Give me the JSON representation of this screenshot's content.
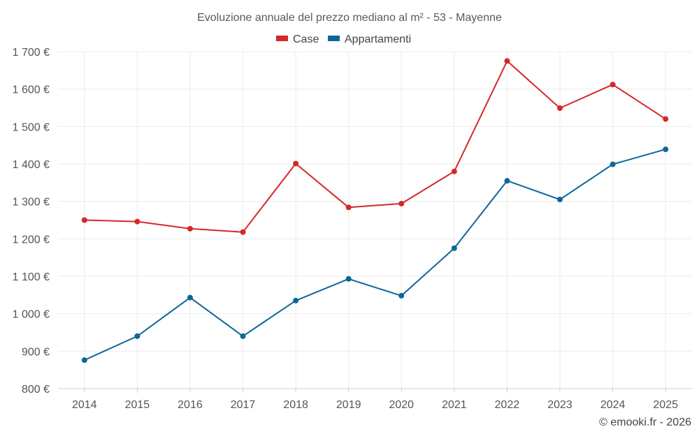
{
  "chart_data": {
    "type": "line",
    "title": "Evoluzione annuale del prezzo mediano al m² - 53 - Mayenne",
    "categories": [
      "2014",
      "2015",
      "2016",
      "2017",
      "2018",
      "2019",
      "2020",
      "2021",
      "2022",
      "2023",
      "2024",
      "2025"
    ],
    "series": [
      {
        "name": "Case",
        "color": "#d62728",
        "values": [
          1250,
          1246,
          1227,
          1218,
          1401,
          1284,
          1294,
          1380,
          1675,
          1549,
          1612,
          1520
        ]
      },
      {
        "name": "Appartamenti",
        "color": "#0e6699",
        "values": [
          876,
          940,
          1043,
          940,
          1035,
          1093,
          1048,
          1175,
          1355,
          1305,
          1399,
          1439
        ]
      }
    ],
    "ylim": [
      800,
      1700
    ],
    "yticks": [
      800,
      900,
      1000,
      1100,
      1200,
      1300,
      1400,
      1500,
      1600,
      1700
    ],
    "ytick_labels": [
      "800 €",
      "900 €",
      "1 000 €",
      "1 100 €",
      "1 200 €",
      "1 300 €",
      "1 400 €",
      "1 500 €",
      "1 600 €",
      "1 700 €"
    ],
    "legend_position": "top-center",
    "grid": true,
    "credit": "© emooki.fr - 2026"
  }
}
